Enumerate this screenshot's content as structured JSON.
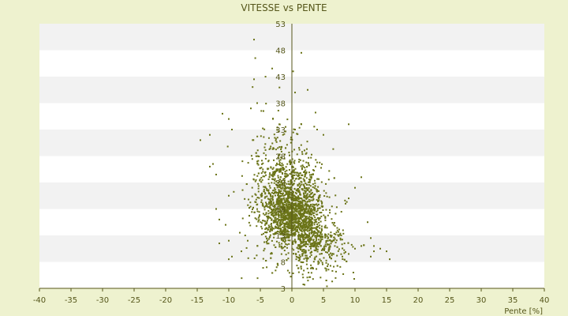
{
  "chart_data": {
    "type": "scatter",
    "title": "VITESSE vs PENTE",
    "xlabel": "Pente [%]",
    "ylabel": "",
    "xlim": [
      -40,
      40
    ],
    "ylim": [
      3,
      53
    ],
    "x_ticks": [
      -40,
      -35,
      -30,
      -25,
      -20,
      -15,
      -10,
      -5,
      0,
      5,
      10,
      15,
      20,
      25,
      30,
      35,
      40
    ],
    "y_ticks": [
      3,
      8,
      13,
      18,
      23,
      28,
      33,
      38,
      43,
      48,
      53
    ],
    "grid": "horizontal-bands",
    "legend": "none",
    "colors": {
      "page_background": "#eef2cf",
      "band_white": "#ffffff",
      "band_gray": "#f2f2f2",
      "marker": "#6b7418",
      "axis": "#55561a"
    },
    "series": [
      {
        "points": [
          [
            -6,
            50
          ],
          [
            -5.8,
            46.5
          ],
          [
            -6,
            42.5
          ],
          [
            1.5,
            47.5
          ],
          [
            0.2,
            44
          ],
          [
            0.5,
            40
          ],
          [
            2.5,
            40.5
          ],
          [
            -11,
            36
          ],
          [
            -10,
            35
          ],
          [
            -9.5,
            33
          ],
          [
            -13,
            32
          ],
          [
            -6.5,
            37
          ],
          [
            -5.5,
            38
          ],
          [
            -4.5,
            36.5
          ],
          [
            -3,
            35
          ],
          [
            -2,
            34
          ],
          [
            -1,
            33.5
          ],
          [
            0.5,
            33
          ],
          [
            1.5,
            34
          ],
          [
            4,
            33
          ],
          [
            9,
            34
          ],
          [
            5,
            32
          ],
          [
            -12.5,
            26.5
          ],
          [
            -13,
            26
          ],
          [
            -14.5,
            31
          ],
          [
            -12,
            24.5
          ],
          [
            -10,
            20.5
          ],
          [
            -12,
            18
          ],
          [
            -11.5,
            16
          ],
          [
            -10.5,
            15
          ],
          [
            -11.5,
            11.5
          ],
          [
            -10,
            12
          ],
          [
            -9.5,
            9
          ],
          [
            -10,
            8.5
          ],
          [
            -8,
            10
          ],
          [
            -7,
            12
          ],
          [
            11,
            24
          ],
          [
            10,
            22
          ],
          [
            9,
            20
          ],
          [
            8.5,
            19
          ],
          [
            12,
            15.5
          ],
          [
            12.5,
            12.5
          ],
          [
            13,
            10
          ],
          [
            14,
            10.5
          ],
          [
            15,
            10
          ],
          [
            15.5,
            8.5
          ],
          [
            12.5,
            9
          ],
          [
            13,
            11
          ],
          [
            11,
            11
          ],
          [
            10,
            10.5
          ],
          [
            9,
            9.5
          ],
          [
            8,
            9
          ]
        ]
      }
    ]
  }
}
